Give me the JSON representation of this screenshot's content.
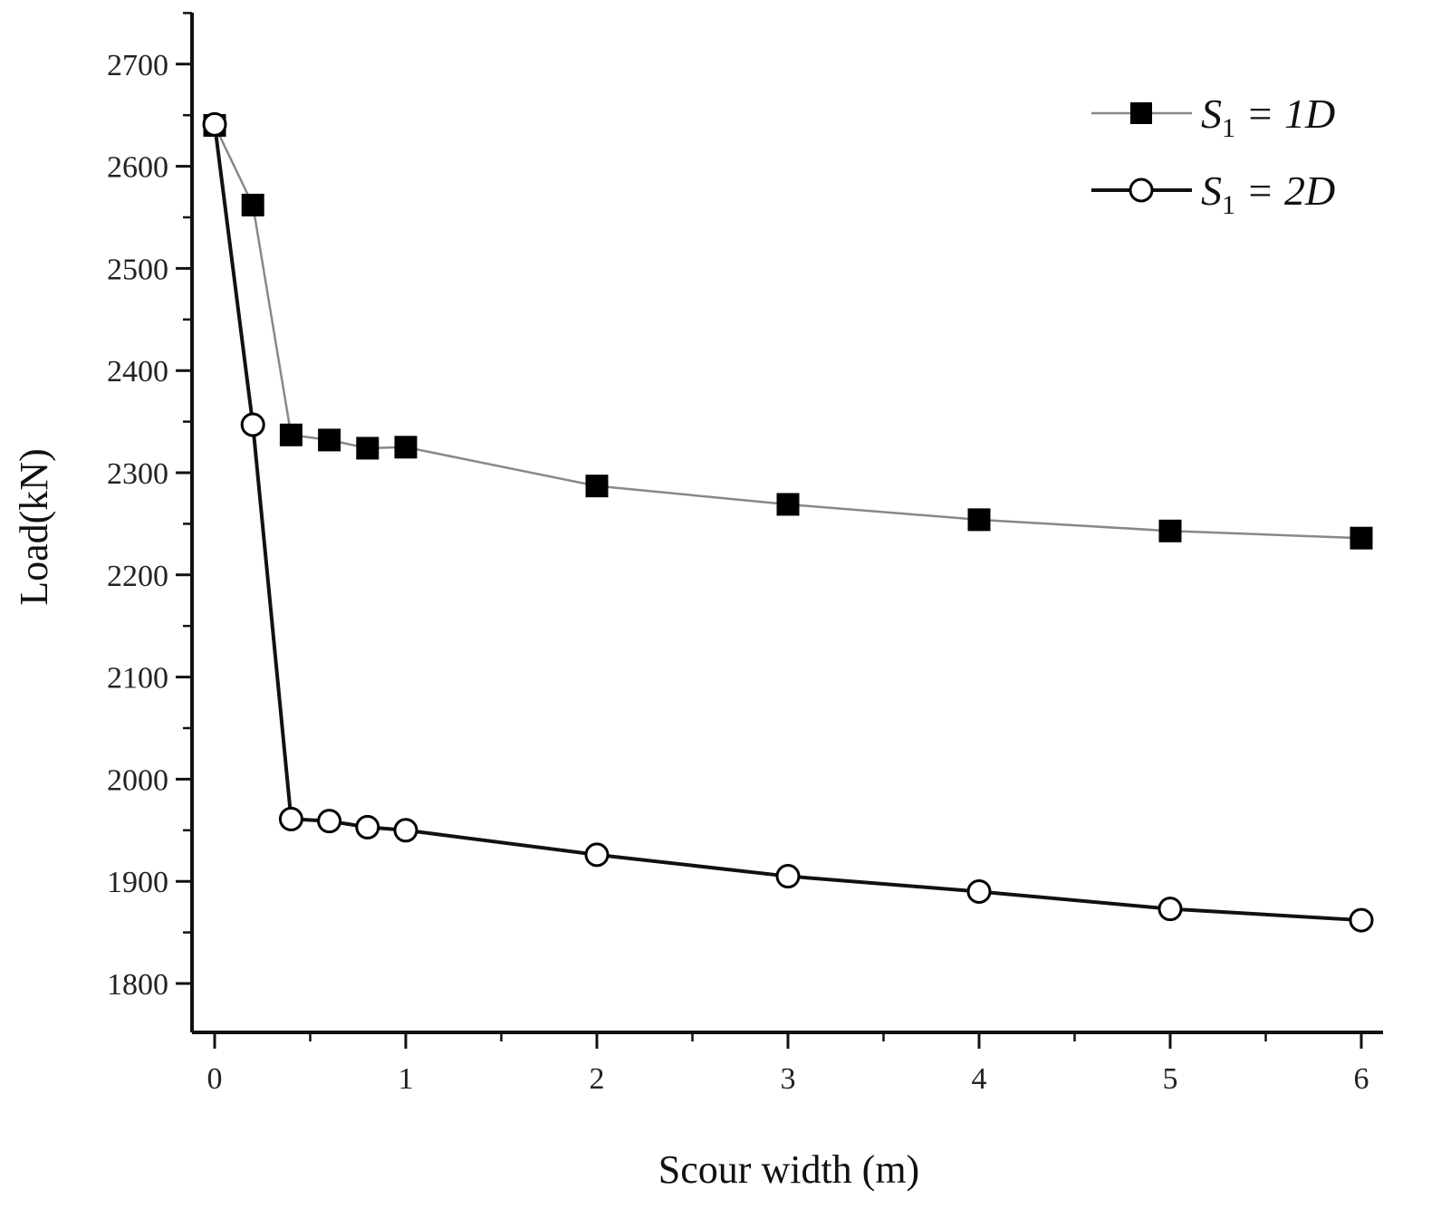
{
  "chart_data": {
    "type": "line",
    "title": "",
    "xlabel": "Scour width (m)",
    "ylabel": "Load(kN)",
    "xlim": [
      -0.1,
      6.2
    ],
    "ylim": [
      1750,
      2760
    ],
    "xticks": [
      0,
      1,
      2,
      3,
      4,
      5,
      6
    ],
    "xtick_labels": [
      "0",
      "1",
      "2",
      "3",
      "4",
      "5",
      "6"
    ],
    "yticks": [
      1800,
      1900,
      2000,
      2100,
      2200,
      2300,
      2400,
      2500,
      2600,
      2700
    ],
    "ytick_labels": [
      "1800",
      "1900",
      "2000",
      "2100",
      "2200",
      "2300",
      "2400",
      "2500",
      "2600",
      "2700"
    ],
    "x": [
      0,
      0.2,
      0.4,
      0.6,
      0.8,
      1,
      2,
      3,
      4,
      5,
      6
    ],
    "series": [
      {
        "name": "S1 = 1D",
        "legend": {
          "main": "S",
          "sub": "1",
          "rest": " = 1D"
        },
        "marker": "filled-square",
        "color": "#888888",
        "values": [
          2640,
          2562,
          2337,
          2332,
          2324,
          2325,
          2287,
          2269,
          2254,
          2243,
          2236
        ]
      },
      {
        "name": "S1 = 2D",
        "legend": {
          "main": "S",
          "sub": "1",
          "rest": " = 2D"
        },
        "marker": "open-circle",
        "color": "#111111",
        "values": [
          2641,
          2347,
          1961,
          1959,
          1953,
          1950,
          1926,
          1905,
          1890,
          1873,
          1862
        ]
      }
    ],
    "legend_position": "top-right",
    "grid": false
  }
}
